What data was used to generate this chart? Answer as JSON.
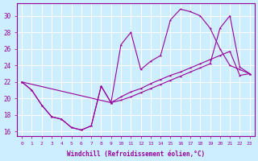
{
  "xlabel": "Windchill (Refroidissement éolien,°C)",
  "xlim": [
    -0.5,
    23.5
  ],
  "ylim": [
    15.5,
    31.5
  ],
  "xticks": [
    0,
    1,
    2,
    3,
    4,
    5,
    6,
    7,
    8,
    9,
    10,
    11,
    12,
    13,
    14,
    15,
    16,
    17,
    18,
    19,
    20,
    21,
    22,
    23
  ],
  "yticks": [
    16,
    18,
    20,
    22,
    24,
    26,
    28,
    30
  ],
  "background_color": "#cceeff",
  "grid_color": "#ffffff",
  "line_color": "#990099",
  "curve1_x": [
    0,
    1,
    2,
    3,
    4,
    5,
    6,
    7,
    8,
    9,
    10,
    11,
    12,
    13,
    14,
    15,
    16,
    17,
    18,
    19,
    20,
    21,
    22,
    23
  ],
  "curve1_y": [
    22.0,
    21.0,
    19.2,
    17.8,
    17.5,
    16.5,
    16.2,
    16.7,
    21.5,
    19.5,
    26.5,
    28.0,
    23.5,
    24.5,
    25.2,
    29.5,
    30.8,
    30.5,
    30.0,
    28.5,
    26.0,
    24.0,
    23.5,
    23.0
  ],
  "curve2_x": [
    0,
    1,
    2,
    3,
    4,
    5,
    6,
    7,
    8,
    9,
    10,
    11,
    12,
    13,
    14,
    15,
    16,
    17,
    18,
    19,
    20,
    21,
    22,
    23
  ],
  "curve2_y": [
    22.0,
    21.0,
    19.2,
    17.8,
    17.5,
    16.5,
    16.2,
    16.7,
    21.5,
    19.5,
    20.2,
    20.8,
    21.2,
    21.8,
    22.3,
    22.8,
    23.2,
    23.7,
    24.2,
    24.7,
    25.2,
    25.7,
    22.8,
    23.0
  ],
  "curve3_x": [
    0,
    9,
    10,
    11,
    12,
    13,
    14,
    15,
    16,
    17,
    18,
    19,
    20,
    21,
    22,
    23
  ],
  "curve3_y": [
    22.0,
    19.5,
    19.8,
    20.2,
    20.7,
    21.2,
    21.7,
    22.2,
    22.7,
    23.2,
    23.7,
    24.2,
    28.5,
    30.0,
    23.8,
    23.0
  ]
}
